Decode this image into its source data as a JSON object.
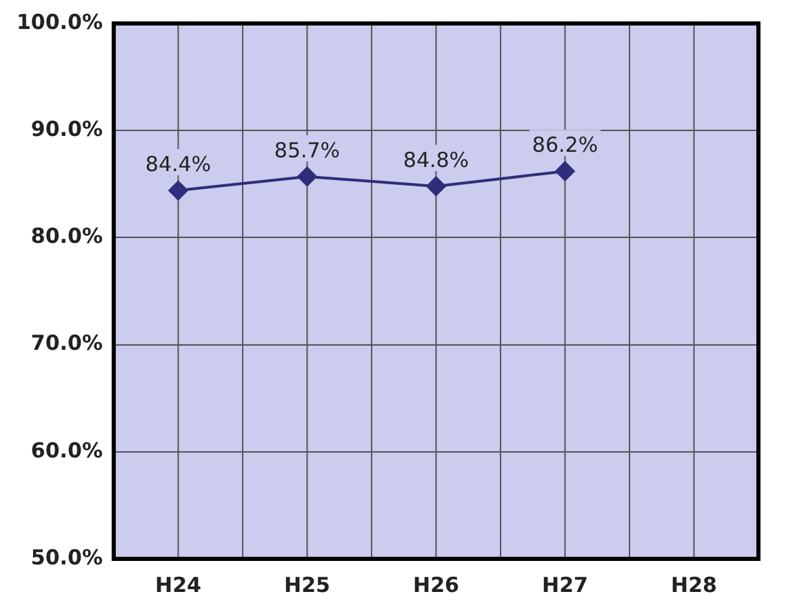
{
  "chart_data": {
    "type": "line",
    "categories": [
      "H24",
      "H25",
      "H26",
      "H27",
      "H28"
    ],
    "series": [
      {
        "color": "#2e2e7a",
        "values": [
          84.4,
          85.7,
          84.8,
          86.2,
          null
        ],
        "value_labels": [
          "84.4%",
          "85.7%",
          "84.8%",
          "86.2%",
          null
        ]
      }
    ],
    "ylim": [
      50,
      100
    ],
    "yticks": [
      {
        "value": 50,
        "label": "50.0%"
      },
      {
        "value": 60,
        "label": "60.0%"
      },
      {
        "value": 70,
        "label": "70.0%"
      },
      {
        "value": 80,
        "label": "80.0%"
      },
      {
        "value": 90,
        "label": "90.0%"
      },
      {
        "value": 100,
        "label": "100.0%"
      }
    ],
    "grid": true,
    "legend": false,
    "marker": "diamond",
    "line_style": "solid"
  }
}
